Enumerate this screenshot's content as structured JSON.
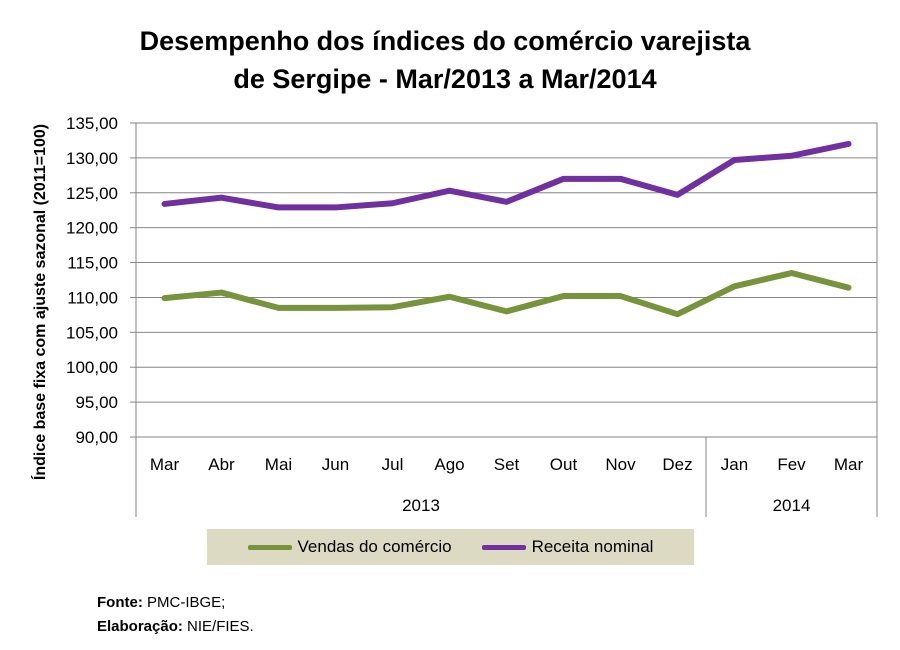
{
  "chart_data": {
    "type": "line",
    "title": "Desempenho dos índices do comércio varejista de Sergipe - Mar/2013 a Mar/2014",
    "xlabel": "",
    "ylabel": "Índice base fixa com ajuste sazonal (2011=100)",
    "ylim": [
      90,
      135
    ],
    "ytick_step": 5,
    "yticks": [
      "90,00",
      "95,00",
      "100,00",
      "105,00",
      "110,00",
      "115,00",
      "120,00",
      "125,00",
      "130,00",
      "135,00"
    ],
    "categories": [
      "Mar",
      "Abr",
      "Mai",
      "Jun",
      "Jul",
      "Ago",
      "Set",
      "Out",
      "Nov",
      "Dez",
      "Jan",
      "Fev",
      "Mar"
    ],
    "year_groups": [
      {
        "label": "2013",
        "count": 10
      },
      {
        "label": "2014",
        "count": 3
      }
    ],
    "series": [
      {
        "name": "Vendas do comércio",
        "color": "#77933c",
        "values": [
          109.9,
          110.7,
          108.5,
          108.5,
          108.6,
          110.1,
          108.0,
          110.2,
          110.2,
          107.6,
          111.6,
          113.5,
          111.4
        ]
      },
      {
        "name": "Receita nominal",
        "color": "#7030a0",
        "values": [
          123.4,
          124.3,
          122.9,
          122.9,
          123.5,
          125.3,
          123.7,
          127.0,
          127.0,
          124.7,
          129.7,
          130.3,
          132.0
        ]
      }
    ],
    "grid": true,
    "legend": "bottom"
  },
  "source": {
    "fonte_label": "Fonte:",
    "fonte_value": "PMC-IBGE;",
    "elaboracao_label": "Elaboração:",
    "elaboracao_value": "NIE/FIES."
  }
}
